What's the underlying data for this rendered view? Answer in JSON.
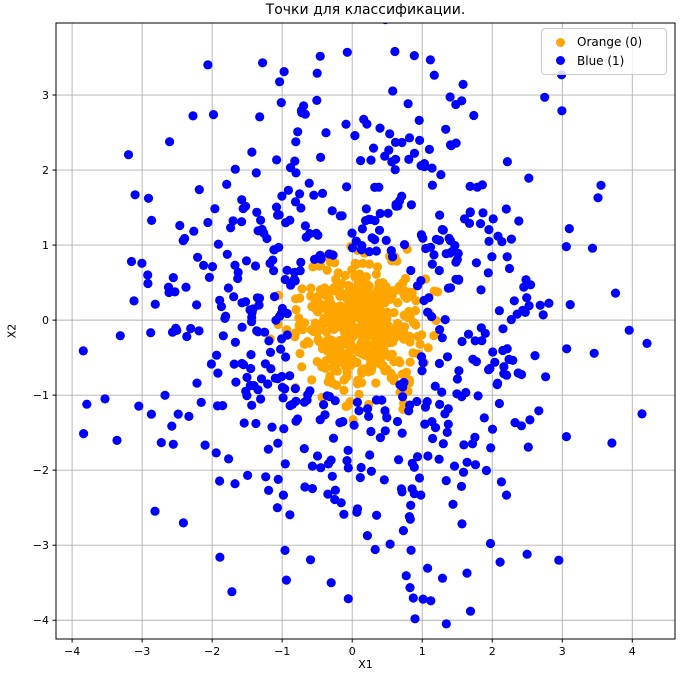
{
  "chart_data": {
    "type": "scatter",
    "title": "Точки для классификации.",
    "xlabel": "X1",
    "ylabel": "X2",
    "xlim": [
      -4.23,
      4.61
    ],
    "ylim": [
      -4.25,
      3.96
    ],
    "xticks": [
      -4,
      -3,
      -2,
      -1,
      0,
      1,
      2,
      3,
      4
    ],
    "yticks": [
      -4,
      -3,
      -2,
      -1,
      0,
      1,
      2,
      3
    ],
    "grid": true,
    "grid_color": "#b0b0b0",
    "spine_color": "#000000",
    "background": "#ffffff",
    "marker_radius_px": 4.6,
    "legend": {
      "position": "upper right",
      "entries": [
        {
          "label": "Orange (0)",
          "color": "#FFA500"
        },
        {
          "label": "Blue (1)",
          "color": "#0000FF"
        }
      ]
    },
    "series": [
      {
        "name": "orange",
        "label": "Orange (0)",
        "color": "#FFA500",
        "distribution": "gaussian",
        "count": 500,
        "center": [
          0.12,
          -0.1
        ],
        "std": 0.42,
        "min_radius": 0,
        "max_radius": 1.25,
        "seed": 42,
        "extra_points": [
          [
            -1.05,
            0.33
          ],
          [
            1.1,
            0.1
          ],
          [
            -1.17,
            -0.25
          ],
          [
            -0.81,
            -0.9
          ]
        ]
      },
      {
        "name": "blue",
        "label": "Blue (1)",
        "color": "#0000FF",
        "distribution": "gaussian",
        "count": 560,
        "center": [
          0.05,
          -0.08
        ],
        "std": 1.45,
        "min_radius": 0.98,
        "max_radius": 4.4,
        "seed": 7,
        "extra_points": [
          [
            -3.84,
            -0.41
          ],
          [
            -3.79,
            -1.12
          ],
          [
            -3.53,
            -1.05
          ],
          [
            4.21,
            -0.31
          ],
          [
            3.76,
            0.36
          ],
          [
            3.51,
            1.63
          ],
          [
            3.1,
            1.22
          ],
          [
            1.69,
            -3.88
          ],
          [
            1.29,
            -3.44
          ],
          [
            -0.3,
            -3.5
          ],
          [
            0.61,
            3.58
          ],
          [
            -0.07,
            3.57
          ],
          [
            2.99,
            3.27
          ],
          [
            -3.1,
            1.67
          ],
          [
            2.95,
            -3.2
          ],
          [
            -1.89,
            -3.16
          ]
        ]
      }
    ]
  }
}
